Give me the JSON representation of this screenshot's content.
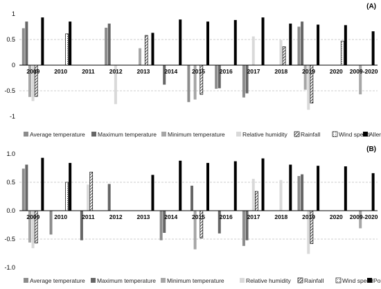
{
  "colors": {
    "average_temperature": "#8c8c8c",
    "maximum_temperature": "#666666",
    "minimum_temperature": "#a6a6a6",
    "relative_humidity": "#d9d9d9",
    "rainfall": "hatched",
    "wind_speed": "dotted",
    "target": "#000000",
    "gridline": "#bfbfbf",
    "zero_line": "#000000"
  },
  "chart_data": [
    {
      "type": "bar",
      "panel_label": "(A)",
      "categories": [
        "2009",
        "2010",
        "2011",
        "2012",
        "2013",
        "2014",
        "2015",
        "2016",
        "2017",
        "2018",
        "2019",
        "2020",
        "2009-2020"
      ],
      "ylim": [
        -1,
        1
      ],
      "yticks": [
        "-1",
        "-0.5",
        "0",
        "0.5",
        "1"
      ],
      "reference_lines": [
        0.5,
        -0.5
      ],
      "grid": false,
      "legend_position": "bottom",
      "series": [
        {
          "name": "Average temperature",
          "values": [
            0.72,
            null,
            null,
            0.73,
            null,
            null,
            -0.72,
            -0.46,
            -0.63,
            null,
            0.75,
            null,
            null
          ]
        },
        {
          "name": "Maximum temperature",
          "values": [
            0.85,
            null,
            null,
            0.81,
            null,
            -0.38,
            null,
            -0.45,
            -0.55,
            null,
            0.85,
            null,
            null
          ]
        },
        {
          "name": "Minimum temperature",
          "values": [
            -0.62,
            null,
            null,
            null,
            0.33,
            null,
            -0.67,
            null,
            null,
            null,
            -0.48,
            null,
            -0.57
          ]
        },
        {
          "name": "Relative humidity",
          "values": [
            -0.7,
            null,
            null,
            -0.76,
            null,
            null,
            null,
            null,
            0.56,
            0.49,
            -0.87,
            null,
            null
          ]
        },
        {
          "name": "Rainfall",
          "values": [
            -0.61,
            null,
            null,
            null,
            0.58,
            null,
            -0.57,
            null,
            null,
            0.36,
            -0.74,
            null,
            null
          ]
        },
        {
          "name": "Wind speed",
          "values": [
            null,
            0.61,
            null,
            null,
            null,
            null,
            null,
            null,
            null,
            null,
            null,
            0.47,
            null
          ]
        },
        {
          "name": "Allergen",
          "values": [
            0.93,
            0.85,
            null,
            null,
            0.63,
            0.89,
            0.85,
            0.88,
            0.93,
            0.81,
            0.79,
            0.78,
            0.66
          ]
        }
      ]
    },
    {
      "type": "bar",
      "panel_label": "(B)",
      "categories": [
        "2009",
        "2010",
        "2011",
        "2012",
        "2013",
        "2014",
        "2015",
        "2016",
        "2017",
        "2018",
        "2019",
        "2020",
        "2009-2020"
      ],
      "ylim": [
        -1,
        1
      ],
      "yticks": [
        "-1.0",
        "-0.5",
        "0.0",
        "0.5",
        "1.0"
      ],
      "reference_lines": [
        0.5,
        -0.5
      ],
      "grid": false,
      "legend_position": "bottom",
      "series": [
        {
          "name": "Average temperature",
          "values": [
            0.74,
            -0.42,
            null,
            null,
            null,
            -0.52,
            null,
            null,
            -0.62,
            null,
            0.61,
            null,
            null
          ]
        },
        {
          "name": "Maximum temperature",
          "values": [
            0.81,
            null,
            -0.52,
            0.47,
            null,
            -0.39,
            0.44,
            -0.4,
            -0.52,
            null,
            0.64,
            null,
            null
          ]
        },
        {
          "name": "Minimum temperature",
          "values": [
            -0.56,
            null,
            null,
            null,
            null,
            null,
            -0.68,
            null,
            null,
            null,
            null,
            null,
            -0.31
          ]
        },
        {
          "name": "Relative humidity",
          "values": [
            -0.66,
            null,
            0.46,
            null,
            null,
            null,
            null,
            null,
            0.56,
            0.54,
            -0.76,
            null,
            null
          ]
        },
        {
          "name": "Rainfall",
          "values": [
            -0.57,
            null,
            0.68,
            null,
            null,
            null,
            -0.48,
            null,
            0.34,
            null,
            -0.58,
            null,
            null
          ]
        },
        {
          "name": "Wind speed",
          "values": [
            null,
            0.5,
            null,
            null,
            null,
            null,
            null,
            null,
            null,
            null,
            null,
            null,
            null
          ]
        },
        {
          "name": "Pollen",
          "values": [
            0.93,
            0.84,
            null,
            null,
            0.63,
            0.88,
            0.84,
            0.87,
            0.92,
            0.81,
            0.79,
            0.78,
            0.66
          ]
        }
      ]
    }
  ]
}
